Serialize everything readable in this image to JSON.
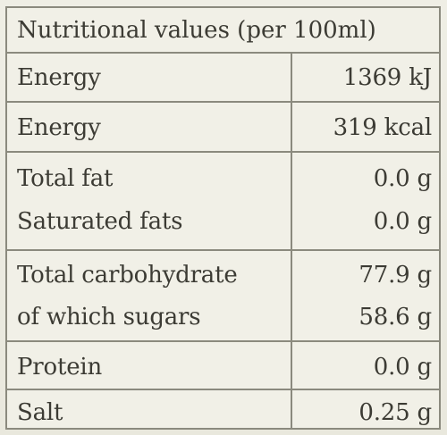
{
  "table": {
    "title": "Nutritional values (per 100ml)",
    "rows": [
      {
        "name_lines": [
          "Energy"
        ],
        "value_lines": [
          "1369 kJ"
        ]
      },
      {
        "name_lines": [
          "Energy"
        ],
        "value_lines": [
          "319 kcal"
        ]
      },
      {
        "name_lines": [
          "Total fat",
          "Saturated fats"
        ],
        "value_lines": [
          "0.0 g",
          "0.0 g"
        ]
      },
      {
        "name_lines": [
          "Total carbohydrate",
          "of which sugars"
        ],
        "value_lines": [
          "77.9 g",
          "58.6 g"
        ]
      },
      {
        "name_lines": [
          "Protein"
        ],
        "value_lines": [
          "0.0 g"
        ]
      },
      {
        "name_lines": [
          "Salt"
        ],
        "value_lines": [
          "0.25 g"
        ]
      }
    ]
  }
}
